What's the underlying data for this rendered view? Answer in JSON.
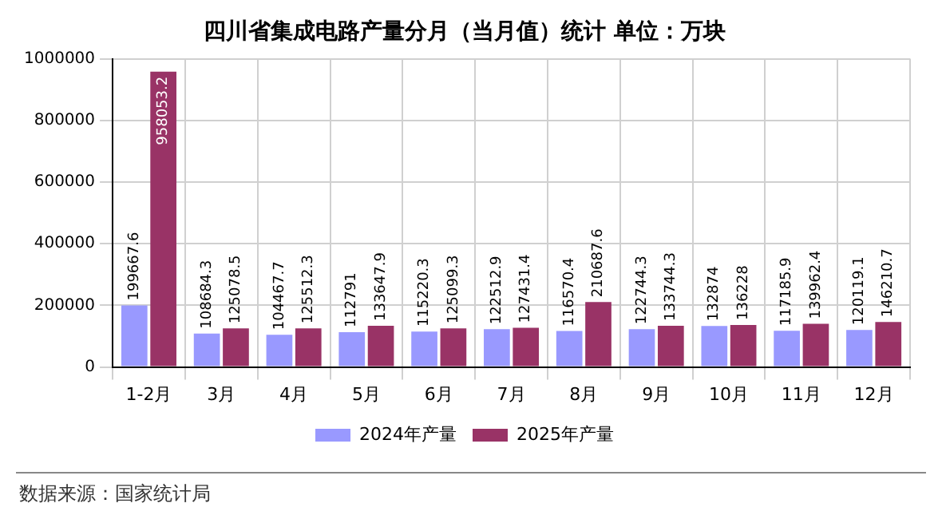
{
  "chart_data": {
    "type": "bar",
    "title": "四川省集成电路产量分月（当月值）统计 单位：万块",
    "categories": [
      "1-2月",
      "3月",
      "4月",
      "5月",
      "6月",
      "7月",
      "8月",
      "9月",
      "10月",
      "11月",
      "12月"
    ],
    "series": [
      {
        "name": "2024年产量",
        "color": "#9999ff",
        "values": [
          199667.6,
          108684.3,
          104467.7,
          112791,
          115220.3,
          122512.9,
          116570.4,
          122744.3,
          132874,
          117185.9,
          120119.1
        ]
      },
      {
        "name": "2025年产量",
        "color": "#993366",
        "values": [
          958053.2,
          125078.5,
          125512.3,
          133647.9,
          125099.3,
          127431.4,
          210687.6,
          133744.3,
          136228,
          139962.4,
          146210.7
        ]
      }
    ],
    "ylim": [
      0,
      1000000
    ],
    "yticks": [
      0,
      200000,
      400000,
      600000,
      800000,
      1000000
    ],
    "grid": true,
    "legend": "bottom",
    "data_labels": true,
    "annotations": [
      "数据来源：国家统计局"
    ]
  }
}
